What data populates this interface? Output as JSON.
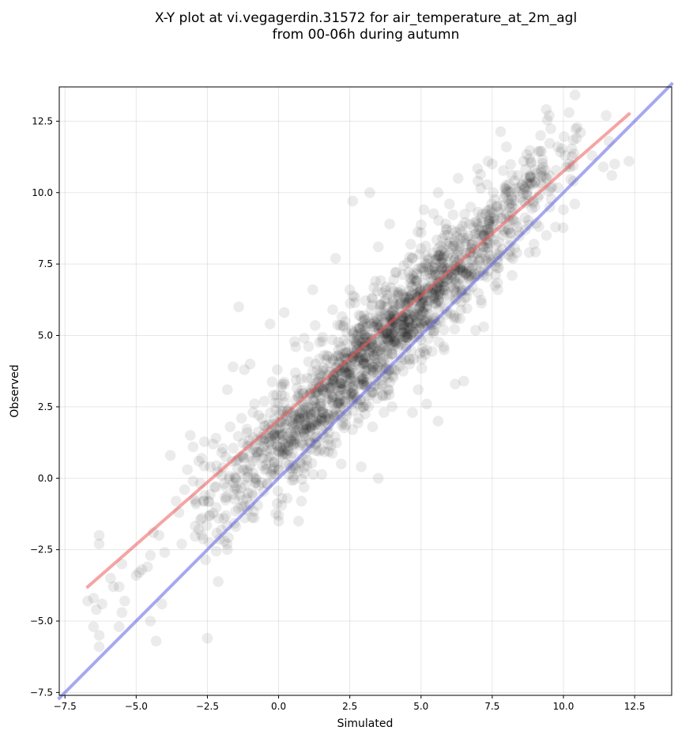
{
  "chart_data": {
    "type": "scatter",
    "title_lines": [
      "X-Y plot at vi.vegagerdin.31572 for air_temperature_at_2m_agl",
      "from 00-06h during autumn"
    ],
    "xlabel": "Simulated",
    "ylabel": "Observed",
    "xlim": [
      -7.7,
      13.8
    ],
    "ylim": [
      -7.6,
      13.7
    ],
    "xticks": [
      -7.5,
      -5.0,
      -2.5,
      0.0,
      2.5,
      5.0,
      7.5,
      10.0,
      12.5
    ],
    "yticks": [
      -7.5,
      -5.0,
      -2.5,
      0.0,
      2.5,
      5.0,
      7.5,
      10.0,
      12.5
    ],
    "xtick_labels": [
      "−7.5",
      "−5.0",
      "−2.5",
      "0.0",
      "2.5",
      "5.0",
      "7.5",
      "10.0",
      "12.5"
    ],
    "ytick_labels": [
      "−7.5",
      "−5.0",
      "−2.5",
      "0.0",
      "2.5",
      "5.0",
      "7.5",
      "10.0",
      "12.5"
    ],
    "grid": true,
    "point_color": "#000000",
    "point_alpha": 0.08,
    "series": [
      {
        "kind": "points",
        "points": [
          [
            -6.7,
            -4.3
          ],
          [
            -6.5,
            -4.2
          ],
          [
            -6.4,
            -4.6
          ],
          [
            -6.3,
            -2.3
          ],
          [
            -6.3,
            -2.0
          ],
          [
            -6.2,
            -4.4
          ],
          [
            -6.3,
            -5.5
          ],
          [
            -6.5,
            -5.2
          ],
          [
            -6.3,
            -5.9
          ],
          [
            -5.8,
            -3.8
          ],
          [
            -5.9,
            -3.5
          ],
          [
            -5.6,
            -3.8
          ],
          [
            -5.5,
            -3.0
          ],
          [
            -5.4,
            -4.3
          ],
          [
            -5.5,
            -4.7
          ],
          [
            -5.6,
            -5.2
          ],
          [
            -5.0,
            -3.4
          ],
          [
            -4.9,
            -3.3
          ],
          [
            -4.8,
            -3.2
          ],
          [
            -4.6,
            -3.1
          ],
          [
            -4.5,
            -2.7
          ],
          [
            -4.4,
            -1.9
          ],
          [
            -4.2,
            -2.0
          ],
          [
            -4.0,
            -2.6
          ],
          [
            -4.1,
            -4.4
          ],
          [
            -4.5,
            -5.0
          ],
          [
            -4.3,
            -5.7
          ],
          [
            -3.8,
            0.8
          ],
          [
            -3.6,
            -0.8
          ],
          [
            -3.5,
            -1.2
          ],
          [
            -3.4,
            -2.3
          ],
          [
            -3.3,
            -0.4
          ],
          [
            -3.2,
            0.3
          ],
          [
            -3.1,
            1.5
          ],
          [
            -3.0,
            1.1
          ],
          [
            -2.9,
            -0.9
          ],
          [
            -2.8,
            -1.8
          ],
          [
            -2.7,
            0.7
          ],
          [
            -2.6,
            -0.6
          ],
          [
            -2.5,
            -5.6
          ],
          [
            -2.3,
            1.2
          ],
          [
            -2.2,
            -0.3
          ],
          [
            -2.1,
            -1.4
          ],
          [
            -2.0,
            0.9
          ],
          [
            -1.9,
            -2.2
          ],
          [
            -1.8,
            -2.5
          ],
          [
            -1.8,
            3.1
          ],
          [
            -1.6,
            3.9
          ],
          [
            -1.5,
            0.0
          ],
          [
            -1.3,
            -1.0
          ],
          [
            -1.4,
            6.0
          ],
          [
            -1.2,
            3.8
          ],
          [
            -1.0,
            4.0
          ],
          [
            -0.9,
            -0.6
          ],
          [
            -0.7,
            2.2
          ],
          [
            -0.5,
            1.1
          ],
          [
            -0.3,
            5.4
          ],
          [
            0.0,
            -1.3
          ],
          [
            0.0,
            -1.5
          ],
          [
            0.2,
            5.8
          ],
          [
            0.3,
            -0.7
          ],
          [
            0.5,
            0.3
          ],
          [
            0.7,
            -1.5
          ],
          [
            0.8,
            -0.8
          ],
          [
            0.9,
            4.9
          ],
          [
            1.2,
            6.6
          ],
          [
            1.5,
            1.0
          ],
          [
            1.7,
            4.3
          ],
          [
            1.9,
            5.9
          ],
          [
            2.0,
            7.7
          ],
          [
            2.2,
            0.5
          ],
          [
            2.5,
            6.6
          ],
          [
            2.6,
            1.7
          ],
          [
            2.6,
            9.7
          ],
          [
            2.9,
            0.4
          ],
          [
            3.0,
            4.0
          ],
          [
            3.1,
            5.4
          ],
          [
            3.3,
            1.8
          ],
          [
            3.4,
            6.9
          ],
          [
            3.5,
            0.0
          ],
          [
            3.5,
            8.1
          ],
          [
            3.2,
            10.0
          ],
          [
            3.7,
            2.3
          ],
          [
            3.9,
            8.9
          ],
          [
            4.1,
            7.2
          ],
          [
            4.3,
            4.1
          ],
          [
            4.5,
            5.8
          ],
          [
            4.7,
            7.7
          ],
          [
            4.7,
            2.3
          ],
          [
            4.9,
            3.1
          ],
          [
            5.0,
            8.6
          ],
          [
            5.1,
            9.4
          ],
          [
            5.2,
            2.6
          ],
          [
            5.4,
            6.5
          ],
          [
            5.6,
            10.0
          ],
          [
            5.6,
            2.0
          ],
          [
            5.8,
            4.6
          ],
          [
            5.9,
            8.2
          ],
          [
            6.0,
            9.6
          ],
          [
            6.2,
            3.3
          ],
          [
            6.3,
            10.5
          ],
          [
            6.4,
            5.9
          ],
          [
            6.5,
            3.4
          ],
          [
            6.7,
            8.9
          ],
          [
            6.8,
            6.7
          ],
          [
            7.0,
            10.4
          ],
          [
            7.2,
            5.3
          ],
          [
            7.3,
            7.6
          ],
          [
            7.5,
            11.0
          ],
          [
            7.7,
            6.6
          ],
          [
            7.9,
            9.8
          ],
          [
            8.0,
            11.6
          ],
          [
            8.2,
            7.1
          ],
          [
            8.4,
            8.8
          ],
          [
            8.6,
            11.1
          ],
          [
            8.8,
            7.9
          ],
          [
            9.0,
            10.8
          ],
          [
            9.2,
            12.0
          ],
          [
            9.4,
            8.5
          ],
          [
            9.5,
            12.7
          ],
          [
            9.6,
            10.2
          ],
          [
            9.8,
            11.6
          ],
          [
            10.0,
            9.4
          ],
          [
            10.1,
            10.9
          ],
          [
            10.2,
            12.8
          ],
          [
            10.4,
            9.6
          ],
          [
            10.6,
            12.1
          ],
          [
            11.0,
            11.3
          ],
          [
            11.4,
            10.9
          ],
          [
            11.6,
            11.8
          ],
          [
            11.5,
            12.7
          ],
          [
            11.7,
            10.6
          ],
          [
            11.8,
            11.0
          ],
          [
            12.3,
            11.1
          ],
          [
            0.1,
            3.2
          ],
          [
            0.4,
            2.0
          ],
          [
            0.6,
            4.6
          ],
          [
            0.8,
            2.7
          ],
          [
            1.0,
            3.5
          ],
          [
            1.1,
            1.8
          ],
          [
            1.3,
            4.0
          ],
          [
            1.4,
            2.9
          ],
          [
            1.6,
            3.2
          ],
          [
            1.8,
            2.1
          ],
          [
            2.1,
            4.5
          ],
          [
            2.3,
            3.3
          ],
          [
            2.4,
            5.1
          ],
          [
            2.7,
            3.8
          ],
          [
            2.8,
            2.6
          ],
          [
            3.0,
            5.7
          ],
          [
            3.2,
            4.4
          ],
          [
            3.3,
            3.0
          ],
          [
            3.6,
            6.1
          ],
          [
            3.8,
            4.9
          ],
          [
            4.0,
            3.6
          ],
          [
            4.2,
            6.4
          ],
          [
            4.4,
            5.3
          ],
          [
            4.6,
            4.0
          ],
          [
            4.8,
            6.9
          ],
          [
            5.0,
            5.7
          ],
          [
            5.2,
            4.5
          ],
          [
            5.4,
            7.4
          ],
          [
            5.6,
            6.2
          ],
          [
            5.8,
            5.2
          ],
          [
            6.0,
            7.9
          ],
          [
            6.2,
            6.8
          ],
          [
            6.4,
            7.3
          ],
          [
            6.6,
            8.4
          ],
          [
            6.8,
            7.6
          ],
          [
            7.0,
            8.9
          ],
          [
            7.2,
            8.1
          ],
          [
            7.4,
            9.4
          ],
          [
            7.6,
            8.6
          ],
          [
            7.8,
            9.1
          ],
          [
            8.0,
            10.1
          ],
          [
            8.2,
            9.3
          ],
          [
            8.4,
            10.6
          ],
          [
            8.6,
            9.7
          ],
          [
            8.8,
            10.3
          ],
          [
            9.0,
            9.5
          ],
          [
            9.2,
            10.7
          ],
          [
            -1.1,
            1.6
          ],
          [
            -0.9,
            2.3
          ],
          [
            -0.7,
            0.9
          ],
          [
            -0.5,
            2.7
          ],
          [
            -0.3,
            1.4
          ],
          [
            -0.1,
            2.4
          ],
          [
            0.2,
            1.0
          ],
          [
            -2.4,
            0.4
          ],
          [
            -2.2,
            1.4
          ],
          [
            -2.0,
            0.1
          ],
          [
            -1.7,
            1.8
          ],
          [
            -1.5,
            0.6
          ],
          [
            -1.3,
            2.1
          ],
          [
            -1.1,
            0.3
          ],
          [
            -3.0,
            -0.1
          ],
          [
            -2.8,
            0.6
          ]
        ]
      },
      {
        "kind": "cloud",
        "count": 1600,
        "seed": 31572,
        "x_center": 3.6,
        "x_spread": 3.0,
        "x_range": [
          -3.0,
          10.5
        ],
        "offset_mean": 1.2,
        "offset_spread": 0.95
      },
      {
        "kind": "line",
        "name": "",
        "color": "#ef5a5a",
        "alpha": 0.55,
        "x": [
          -6.7,
          12.3
        ],
        "y": [
          -3.8,
          12.75
        ]
      },
      {
        "kind": "line",
        "name": "",
        "color": "#5f5fe8",
        "alpha": 0.55,
        "x": [
          -7.7,
          13.8
        ],
        "y": [
          -7.7,
          13.8
        ]
      }
    ]
  }
}
